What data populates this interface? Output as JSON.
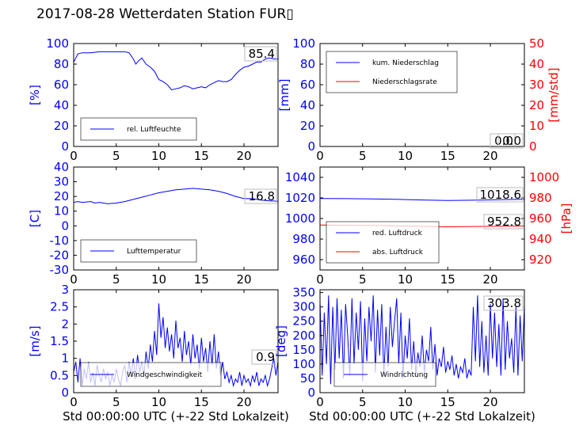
{
  "title": "2017-08-28 Wetterdaten Station FUR▯",
  "colors": {
    "blue": "#0000ff",
    "red": "#ff0000",
    "black": "#000000"
  },
  "chart_data": [
    {
      "id": "humidity",
      "type": "line",
      "ylabel": "[%]",
      "xlim": [
        0,
        24
      ],
      "ylim": [
        0,
        100
      ],
      "yticks": [
        0,
        20,
        40,
        60,
        80,
        100
      ],
      "xticks": [
        0,
        5,
        10,
        15,
        20
      ],
      "last_value_label": "85.4",
      "legend": {
        "position": "lower-left",
        "entries": [
          "rel. Luftfeuchte"
        ]
      },
      "series": [
        {
          "name": "rel. Luftfeuchte",
          "color": "#0000ff",
          "x": [
            0,
            0.5,
            1,
            2,
            3,
            4,
            5,
            6,
            6.5,
            7,
            7.3,
            7.6,
            8,
            8.5,
            9,
            9.5,
            10,
            10.5,
            11,
            11.5,
            12,
            12.5,
            13,
            13.5,
            14,
            14.5,
            15,
            15.5,
            16,
            16.5,
            17,
            17.5,
            18,
            18.5,
            19,
            19.5,
            20,
            20.5,
            21,
            21.5,
            22,
            22.5,
            23,
            23.5,
            24
          ],
          "values": [
            82,
            90,
            91,
            91,
            92,
            92,
            92,
            92,
            91,
            85,
            80,
            83,
            86,
            80,
            77,
            73,
            65,
            63,
            60,
            55,
            56,
            57,
            59,
            58,
            56,
            57,
            58,
            57,
            60,
            62,
            64,
            63,
            63,
            65,
            70,
            74,
            77,
            78,
            80,
            82,
            82,
            85,
            86,
            85,
            85
          ]
        }
      ]
    },
    {
      "id": "precipitation",
      "type": "line",
      "ylabel": "[mm]",
      "y2label": "[mm/std]",
      "xlim": [
        0,
        24
      ],
      "ylim": [
        0,
        100
      ],
      "y2lim": [
        0,
        50
      ],
      "yticks": [
        0,
        20,
        40,
        60,
        80,
        100
      ],
      "y2ticks": [
        0,
        10,
        20,
        30,
        40,
        50
      ],
      "xticks": [
        0,
        5,
        10,
        15,
        20
      ],
      "last_value_label": "0.0",
      "last_value_label2": "0.0",
      "legend": {
        "position": "upper-left",
        "entries": [
          "kum. Niederschlag",
          "Niederschlagsrate"
        ]
      },
      "series": [
        {
          "name": "kum. Niederschlag",
          "color": "#0000ff",
          "axis": "left",
          "x": [
            0,
            24
          ],
          "values": [
            0,
            0
          ]
        },
        {
          "name": "Niederschlagsrate",
          "color": "#ff0000",
          "axis": "right",
          "x": [
            0,
            24
          ],
          "values": [
            0,
            0
          ]
        }
      ]
    },
    {
      "id": "temperature",
      "type": "line",
      "ylabel": "[C]",
      "xlim": [
        0,
        24
      ],
      "ylim": [
        -30,
        40
      ],
      "yticks": [
        -30,
        -20,
        -10,
        0,
        10,
        20,
        30,
        40
      ],
      "xticks": [
        0,
        5,
        10,
        15,
        20
      ],
      "last_value_label": "16.8",
      "legend": {
        "position": "lower-left",
        "entries": [
          "Lufttemperatur"
        ]
      },
      "series": [
        {
          "name": "Lufttemperatur",
          "color": "#0000ff",
          "x": [
            0,
            0.5,
            1,
            2,
            2.5,
            3,
            4,
            5,
            6,
            7,
            8,
            9,
            10,
            11,
            12,
            13,
            14,
            15,
            16,
            17,
            18,
            19,
            20,
            21,
            22,
            23,
            24
          ],
          "values": [
            16,
            16.5,
            16,
            16.5,
            15.5,
            16,
            15,
            15.5,
            16.5,
            18,
            19.5,
            21,
            22.5,
            23.5,
            24.5,
            25,
            25.5,
            25,
            24.5,
            23.5,
            22,
            20,
            18.5,
            18.5,
            17.5,
            17,
            16.8
          ]
        }
      ]
    },
    {
      "id": "pressure",
      "type": "line",
      "ylabel": "[hPa]",
      "xlim": [
        0,
        24
      ],
      "ylim": [
        950,
        1050
      ],
      "y2lim": [
        910,
        1010
      ],
      "yticks": [
        960,
        980,
        1000,
        1020,
        1040
      ],
      "y2ticks": [
        920,
        940,
        960,
        980,
        1000
      ],
      "xticks": [
        0,
        5,
        10,
        15,
        20
      ],
      "last_value_label": "1018.6",
      "last_value_label2": "952.8",
      "legend": {
        "position": "lower-left",
        "entries": [
          "red. Luftdruck",
          "abs. Luftdruck"
        ]
      },
      "series": [
        {
          "name": "red. Luftdruck",
          "color": "#0000ff",
          "axis": "left",
          "x": [
            0,
            3,
            6,
            9,
            12,
            15,
            18,
            21,
            24
          ],
          "values": [
            1019.5,
            1019.3,
            1019.0,
            1018.6,
            1018.0,
            1017.5,
            1017.8,
            1018.3,
            1018.6
          ]
        },
        {
          "name": "abs. Luftdruck",
          "color": "#ff0000",
          "axis": "right",
          "x": [
            0,
            3,
            6,
            9,
            12,
            15,
            18,
            21,
            24
          ],
          "values": [
            953.6,
            953.4,
            953.2,
            952.9,
            952.4,
            951.9,
            952.2,
            952.5,
            952.8
          ]
        }
      ]
    },
    {
      "id": "windspeed",
      "type": "line",
      "ylabel": "[m/s]",
      "xlabel": "Std 00:00:00 UTC (+-22 Std Lokalzeit)",
      "xlim": [
        0,
        24
      ],
      "ylim": [
        0,
        3
      ],
      "yticks": [
        0,
        0.5,
        1,
        1.5,
        2,
        2.5,
        3
      ],
      "xticks": [
        0,
        5,
        10,
        15,
        20
      ],
      "last_value_label": "0.9",
      "legend": {
        "position": "lower-left",
        "entries": [
          "Windgeschwindigkeit"
        ]
      },
      "series": [
        {
          "name": "Windgeschwindigkeit",
          "color": "#0000ff",
          "x": [
            0,
            0.25,
            0.5,
            0.75,
            1,
            1.25,
            1.5,
            1.75,
            2,
            2.25,
            2.5,
            2.75,
            3,
            3.25,
            3.5,
            3.75,
            4,
            4.25,
            4.5,
            4.75,
            5,
            5.25,
            5.5,
            5.75,
            6,
            6.25,
            6.5,
            6.75,
            7,
            7.25,
            7.5,
            7.75,
            8,
            8.25,
            8.5,
            8.75,
            9,
            9.25,
            9.5,
            9.75,
            10,
            10.25,
            10.5,
            10.75,
            11,
            11.25,
            11.5,
            11.75,
            12,
            12.25,
            12.5,
            12.75,
            13,
            13.25,
            13.5,
            13.75,
            14,
            14.25,
            14.5,
            14.75,
            15,
            15.25,
            15.5,
            15.75,
            16,
            16.25,
            16.5,
            16.75,
            17,
            17.25,
            17.5,
            17.75,
            18,
            18.25,
            18.5,
            18.75,
            19,
            19.25,
            19.5,
            19.75,
            20,
            20.25,
            20.5,
            20.75,
            21,
            21.25,
            21.5,
            21.75,
            22,
            22.25,
            22.5,
            22.75,
            23,
            23.25,
            23.5,
            23.75,
            24
          ],
          "values": [
            0.6,
            0.9,
            0.3,
            1.0,
            0.2,
            0.7,
            0.4,
            0.9,
            0.3,
            0.6,
            0.2,
            0.8,
            0.5,
            0.3,
            0.7,
            0.4,
            0.6,
            0.2,
            0.5,
            0.3,
            0.7,
            0.4,
            0.2,
            0.6,
            0.8,
            0.3,
            0.9,
            0.5,
            1.0,
            0.4,
            1.1,
            0.6,
            0.9,
            0.5,
            1.2,
            0.7,
            1.4,
            0.9,
            1.8,
            1.1,
            2.6,
            1.6,
            2.2,
            1.3,
            1.9,
            1.2,
            1.7,
            1.0,
            2.1,
            1.3,
            1.6,
            0.9,
            1.8,
            1.1,
            1.5,
            0.8,
            1.7,
            1.0,
            1.4,
            0.7,
            1.6,
            0.9,
            1.3,
            0.6,
            1.5,
            0.8,
            1.7,
            0.7,
            1.2,
            0.5,
            0.9,
            0.4,
            0.6,
            0.3,
            0.5,
            0.2,
            0.4,
            0.3,
            0.6,
            0.2,
            0.5,
            0.3,
            0.4,
            0.2,
            0.5,
            0.3,
            0.6,
            0.2,
            0.4,
            0.3,
            0.5,
            0.2,
            0.4,
            0.7,
            1.0,
            0.5,
            0.9
          ]
        }
      ]
    },
    {
      "id": "winddirection",
      "type": "line",
      "ylabel": "[deg]",
      "xlabel": "Std 00:00:00 UTC (+-22 Std Lokalzeit)",
      "xlim": [
        0,
        24
      ],
      "ylim": [
        0,
        360
      ],
      "yticks": [
        0,
        50,
        100,
        150,
        200,
        250,
        300,
        350
      ],
      "xticks": [
        0,
        5,
        10,
        15,
        20
      ],
      "last_value_label": "303.8",
      "legend": {
        "position": "lower-left",
        "entries": [
          "Windrichtung"
        ]
      },
      "series": [
        {
          "name": "Windrichtung",
          "color": "#0000ff",
          "x": [
            0,
            0.25,
            0.5,
            0.75,
            1,
            1.25,
            1.5,
            1.75,
            2,
            2.25,
            2.5,
            2.75,
            3,
            3.25,
            3.5,
            3.75,
            4,
            4.25,
            4.5,
            4.75,
            5,
            5.25,
            5.5,
            5.75,
            6,
            6.25,
            6.5,
            6.75,
            7,
            7.25,
            7.5,
            7.75,
            8,
            8.25,
            8.5,
            8.75,
            9,
            9.25,
            9.5,
            9.75,
            10,
            10.25,
            10.5,
            10.75,
            11,
            11.25,
            11.5,
            11.75,
            12,
            12.25,
            12.5,
            12.75,
            13,
            13.25,
            13.5,
            13.75,
            14,
            14.25,
            14.5,
            14.75,
            15,
            15.25,
            15.5,
            15.75,
            16,
            16.25,
            16.5,
            16.75,
            17,
            17.25,
            17.5,
            17.75,
            18,
            18.25,
            18.5,
            18.75,
            19,
            19.25,
            19.5,
            19.75,
            20,
            20.25,
            20.5,
            20.75,
            21,
            21.25,
            21.5,
            21.75,
            22,
            22.25,
            22.5,
            22.75,
            23,
            23.25,
            23.5,
            23.75,
            24
          ],
          "values": [
            320,
            60,
            280,
            100,
            340,
            30,
            300,
            80,
            330,
            120,
            290,
            50,
            310,
            200,
            60,
            330,
            100,
            280,
            150,
            320,
            40,
            260,
            110,
            300,
            180,
            340,
            70,
            290,
            130,
            310,
            60,
            230,
            90,
            300,
            160,
            250,
            330,
            100,
            280,
            50,
            200,
            120,
            260,
            80,
            180,
            60,
            140,
            90,
            200,
            70,
            150,
            110,
            230,
            80,
            170,
            60,
            120,
            90,
            160,
            70,
            110,
            80,
            130,
            60,
            100,
            50,
            90,
            70,
            120,
            50,
            80,
            60,
            300,
            110,
            340,
            90,
            250,
            70,
            200,
            60,
            310,
            120,
            280,
            90,
            240,
            60,
            330,
            80,
            250,
            120,
            190,
            70,
            300,
            60,
            270,
            110,
            304
          ]
        }
      ]
    }
  ]
}
